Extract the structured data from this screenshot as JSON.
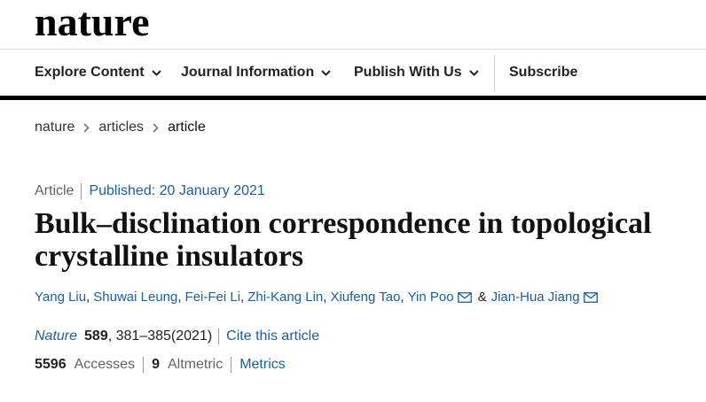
{
  "colors": {
    "link": "#1a5f9e",
    "text": "#222222",
    "muted": "#626262",
    "rule": "#000000"
  },
  "header": {
    "logo": "nature"
  },
  "nav": {
    "items": [
      {
        "label": "Explore Content",
        "icon": "chevron-down-icon"
      },
      {
        "label": "Journal Information",
        "icon": "chevron-down-icon"
      },
      {
        "label": "Publish With Us",
        "icon": "chevron-down-icon"
      }
    ],
    "subscribe": "Subscribe"
  },
  "breadcrumb": {
    "items": [
      "nature",
      "articles",
      "article"
    ],
    "separator_icon": "chevron-right-icon"
  },
  "article": {
    "type": "Article",
    "published": "Published: 20 January 2021",
    "title": "Bulk–disclination correspondence in topological crystalline insulators",
    "authors": [
      {
        "name": "Yang Liu"
      },
      {
        "name": "Shuwai Leung"
      },
      {
        "name": "Fei-Fei Li"
      },
      {
        "name": "Zhi-Kang Lin"
      },
      {
        "name": "Xiufeng Tao"
      },
      {
        "name": "Yin Poo",
        "contact_icon": "mail-icon"
      },
      {
        "name": "Jian-Hua Jiang",
        "contact_icon": "mail-icon"
      }
    ],
    "author_separator": ",",
    "author_conjunction": "&",
    "citation": {
      "journal": "Nature",
      "volume": "589",
      "pages_year": ", 381–385(2021)",
      "cite_link": "Cite this article"
    },
    "metrics": {
      "accesses_count": "5596",
      "accesses_label": "Accesses",
      "altmetric_count": "9",
      "altmetric_label": "Altmetric",
      "metrics_link": "Metrics"
    }
  }
}
